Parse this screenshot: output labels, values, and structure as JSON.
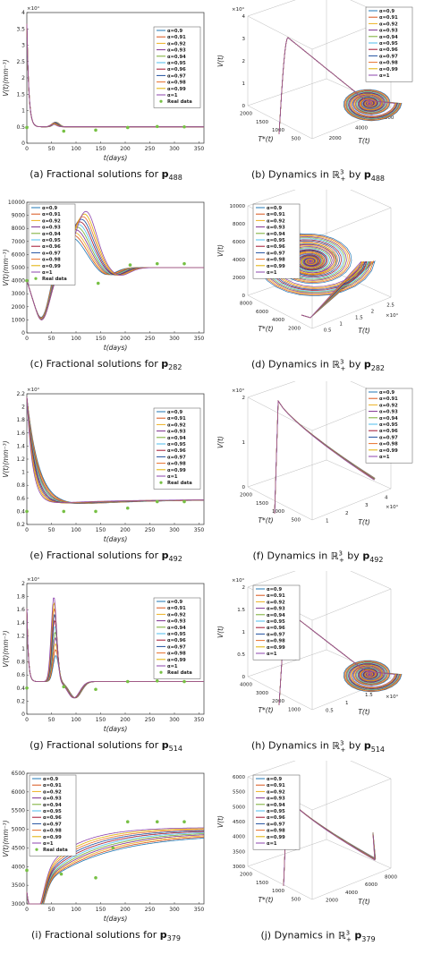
{
  "alpha_labels": [
    "α=0.9",
    "α=0.91",
    "α=0.92",
    "α=0.93",
    "α=0.94",
    "α=0.95",
    "α=0.96",
    "α=0.97",
    "α=0.98",
    "α=0.99",
    "α=1"
  ],
  "real_data_label": "Real data",
  "colors": [
    "#1f77b4",
    "#d95319",
    "#edb120",
    "#7e2f8e",
    "#77ac30",
    "#4dbeee",
    "#a2142f",
    "#1f4e9e",
    "#e8702a",
    "#e0b000",
    "#8e44ad"
  ],
  "real_color": "#77c044",
  "captions": {
    "a": {
      "prefix": "(a) Fractional solutions for ",
      "sub": "488"
    },
    "b": {
      "prefix": "(b) Dynamics in ",
      "mid": " by ",
      "sub": "488"
    },
    "c": {
      "prefix": "(c) Fractional solutions for ",
      "sub": "282"
    },
    "d": {
      "prefix": "(d) Dynamics in ",
      "mid": " by ",
      "sub": "282"
    },
    "e": {
      "prefix": "(e) Fractional solutions for ",
      "sub": "492"
    },
    "f": {
      "prefix": "(f) Dynamics in ",
      "mid": " by ",
      "sub": "492"
    },
    "g": {
      "prefix": "(g) Fractional solutions for ",
      "sub": "514"
    },
    "h": {
      "prefix": "(h) Dynamics in ",
      "mid": " by ",
      "sub": "514"
    },
    "i": {
      "prefix": "(i) Fractional solutions for ",
      "sub": "379"
    },
    "j": {
      "prefix": "(j) Dynamics in ",
      "mid": " ",
      "sub": "379"
    }
  },
  "chart_data": [
    {
      "id": "a",
      "type": "line",
      "xlabel": "t(days)",
      "ylabel": "V(t)(mm⁻³)",
      "xlim": [
        0,
        360
      ],
      "ylim": [
        0,
        40000
      ],
      "y_exp": "×10⁴",
      "xticks": [
        "0",
        "50",
        "100",
        "150",
        "200",
        "250",
        "300",
        "350"
      ],
      "yticks": [
        "0",
        "0.5",
        "1",
        "1.5",
        "2",
        "2.5",
        "3",
        "3.5",
        "4"
      ],
      "real_x": [
        0,
        75,
        140,
        205,
        265,
        320
      ],
      "real_y": [
        4800,
        3700,
        4000,
        4800,
        5100,
        5000
      ],
      "peak_x": [
        60,
        58
      ],
      "peak_y": [
        20000,
        23000
      ],
      "base": 5000,
      "start": 40000
    },
    {
      "id": "b",
      "type": "line3d",
      "zlabel": "V(t)",
      "xlabel": "T(t)",
      "ylabel": "T*(t)",
      "zexp": "×10⁴",
      "zticks": [
        "0",
        "1",
        "2",
        "3",
        "4"
      ],
      "xticks": [
        "2000",
        "4000",
        "6000"
      ],
      "yticks": [
        "500",
        "1000",
        "1500",
        "2000"
      ]
    },
    {
      "id": "c",
      "type": "line",
      "xlabel": "t(days)",
      "ylabel": "V(t)(mm⁻³)",
      "xlim": [
        0,
        360
      ],
      "ylim": [
        0,
        10000
      ],
      "xticks": [
        "0",
        "50",
        "100",
        "150",
        "200",
        "250",
        "300",
        "350"
      ],
      "yticks": [
        "0",
        "1000",
        "2000",
        "3000",
        "4000",
        "5000",
        "6000",
        "7000",
        "8000",
        "9000",
        "10000"
      ],
      "real_x": [
        0,
        75,
        145,
        210,
        265,
        320
      ],
      "real_y": [
        4000,
        4000,
        3800,
        5200,
        5300,
        5300
      ],
      "base": 5000,
      "start": 4000
    },
    {
      "id": "d",
      "type": "line3d",
      "zlabel": "V(t)",
      "xlabel": "T(t)",
      "ylabel": "T*(t)",
      "xexp": "×10⁴",
      "zticks": [
        "0",
        "2000",
        "4000",
        "6000",
        "8000",
        "10000"
      ],
      "xticks": [
        "0.5",
        "1",
        "1.5",
        "2",
        "2.5"
      ],
      "yticks": [
        "2000",
        "4000",
        "6000",
        "8000"
      ]
    },
    {
      "id": "e",
      "type": "line",
      "xlabel": "t(days)",
      "ylabel": "V(t)(mm⁻³)",
      "xlim": [
        0,
        360
      ],
      "ylim": [
        2000,
        22000
      ],
      "y_exp": "×10⁴",
      "xticks": [
        "0",
        "50",
        "100",
        "150",
        "200",
        "250",
        "300",
        "350"
      ],
      "yticks": [
        "0.2",
        "0.4",
        "0.6",
        "0.8",
        "1",
        "1.2",
        "1.4",
        "1.6",
        "1.8",
        "2",
        "2.2"
      ],
      "real_x": [
        0,
        75,
        140,
        205,
        265,
        320
      ],
      "real_y": [
        4000,
        4000,
        4000,
        4500,
        5500,
        5500
      ],
      "base": 5800,
      "start": 21500
    },
    {
      "id": "f",
      "type": "line3d",
      "zlabel": "V(t)",
      "xlabel": "T(t)",
      "ylabel": "T*(t)",
      "zexp": "×10⁴",
      "xexp": "×10⁴",
      "zticks": [
        "0",
        "1",
        "2"
      ],
      "xticks": [
        "1",
        "2",
        "3",
        "4"
      ],
      "yticks": [
        "500",
        "1000",
        "1500",
        "2000"
      ]
    },
    {
      "id": "g",
      "type": "line",
      "xlabel": "t(days)",
      "ylabel": "V(t)(mm⁻³)",
      "xlim": [
        0,
        360
      ],
      "ylim": [
        0,
        20000
      ],
      "y_exp": "×10⁴",
      "xticks": [
        "0",
        "50",
        "100",
        "150",
        "200",
        "250",
        "300",
        "350"
      ],
      "yticks": [
        "0",
        "0.2",
        "0.4",
        "0.6",
        "0.8",
        "1",
        "1.2",
        "1.4",
        "1.6",
        "1.8",
        "2"
      ],
      "real_x": [
        0,
        75,
        140,
        205,
        265,
        320
      ],
      "real_y": [
        4000,
        4200,
        3800,
        5000,
        5100,
        5000
      ],
      "base": 5000,
      "start": 19000
    },
    {
      "id": "h",
      "type": "line3d",
      "zlabel": "V(t)",
      "xlabel": "T(t)",
      "ylabel": "T*(t)",
      "zexp": "×10⁴",
      "xexp": "×10⁴",
      "zticks": [
        "0",
        "0.5",
        "1",
        "1.5",
        "2"
      ],
      "xticks": [
        "0.5",
        "1",
        "1.5",
        "2"
      ],
      "yticks": [
        "1000",
        "2000",
        "3000",
        "4000"
      ]
    },
    {
      "id": "i",
      "type": "line",
      "xlabel": "t(days)",
      "ylabel": "V(t)(mm⁻³)",
      "xlim": [
        0,
        360
      ],
      "ylim": [
        3000,
        6500
      ],
      "xticks": [
        "0",
        "50",
        "100",
        "150",
        "200",
        "250",
        "300",
        "350"
      ],
      "yticks": [
        "3000",
        "3500",
        "4000",
        "4500",
        "5000",
        "5500",
        "6000",
        "6500"
      ],
      "real_x": [
        0,
        70,
        140,
        175,
        205,
        265,
        320
      ],
      "real_y": [
        3900,
        3800,
        3700,
        4500,
        5200,
        5200,
        5200
      ],
      "base": 4900,
      "start": 4300
    },
    {
      "id": "j",
      "type": "line3d",
      "zlabel": "V(t)",
      "xlabel": "T(t)",
      "ylabel": "T*(t)",
      "zticks": [
        "3000",
        "3500",
        "4000",
        "4500",
        "5000",
        "5500",
        "6000"
      ],
      "xticks": [
        "2000",
        "4000",
        "6000",
        "8000"
      ],
      "yticks": [
        "500",
        "1000",
        "1500",
        "2000"
      ]
    }
  ]
}
